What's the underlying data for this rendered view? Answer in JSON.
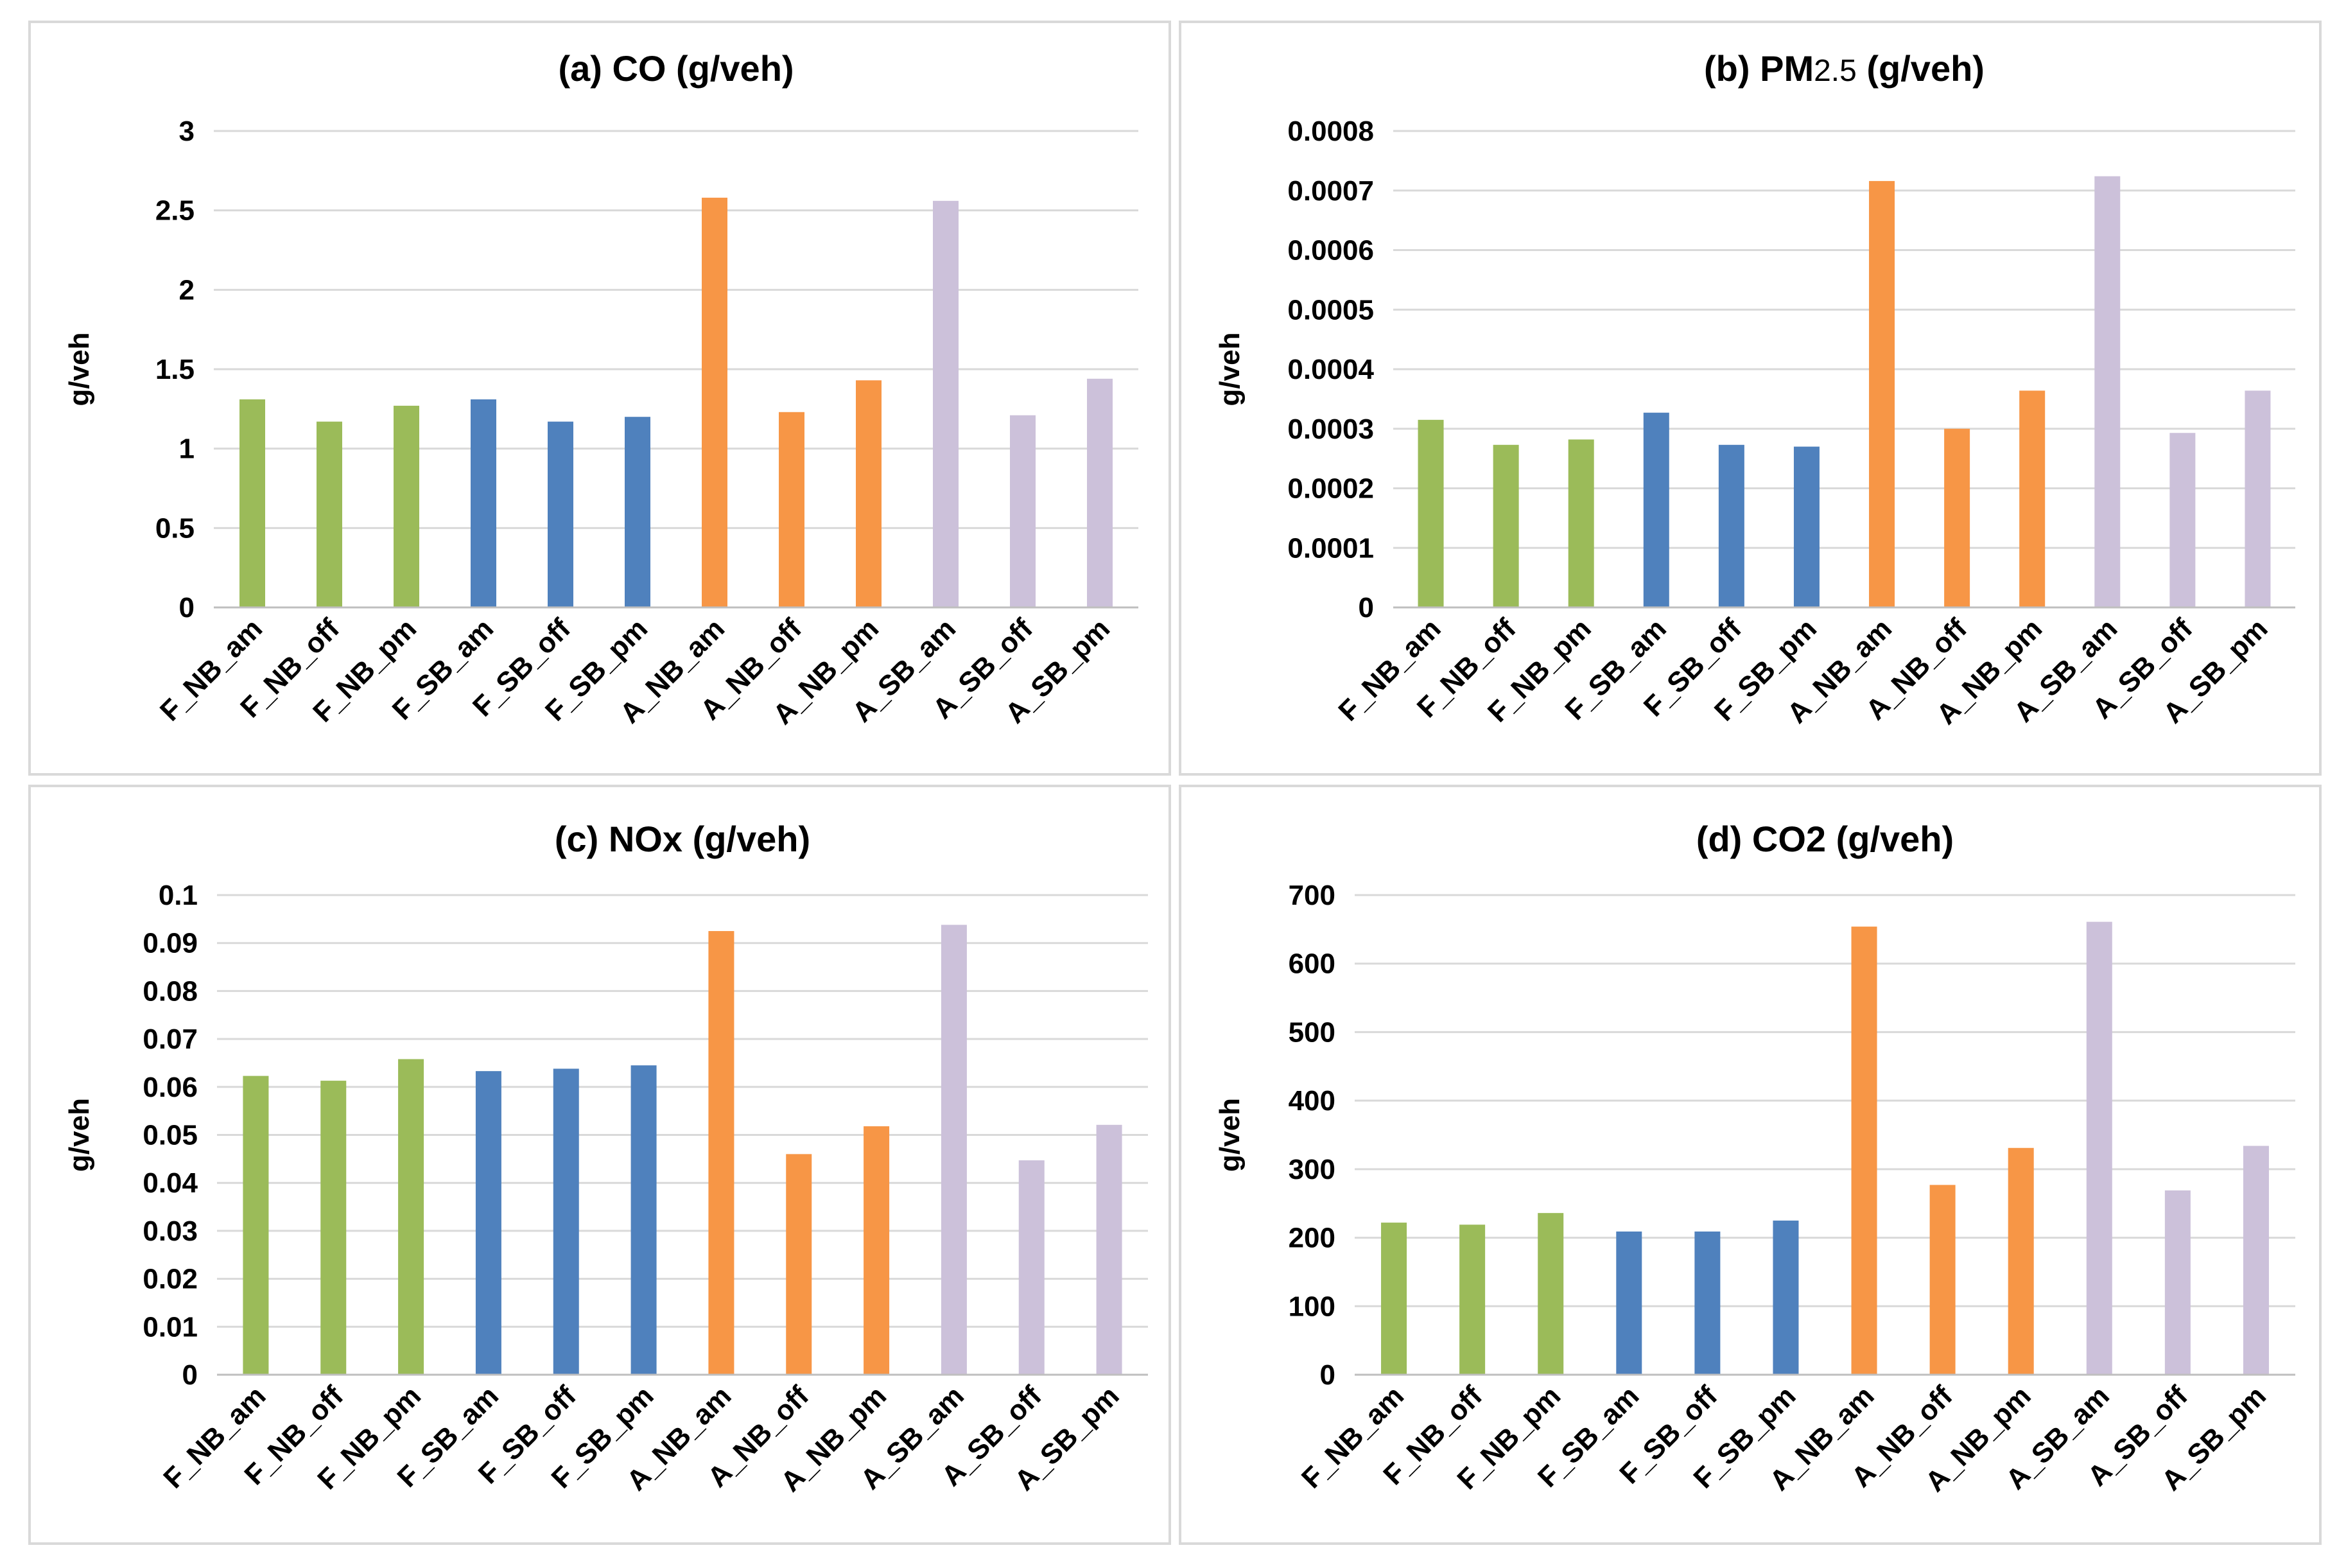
{
  "colors": {
    "F_NB": "#9bbb59",
    "F_SB": "#4f81bd",
    "A_NB": "#f79646",
    "A_SB": "#ccc1da"
  },
  "chart_data": [
    {
      "type": "bar",
      "title": "(a) CO (g/veh)",
      "xlabel": "",
      "ylabel": "g/veh",
      "categories": [
        "F_NB_am",
        "F_NB_off",
        "F_NB_pm",
        "F_SB_am",
        "F_SB_off",
        "F_SB_pm",
        "A_NB_am",
        "A_NB_off",
        "A_NB_pm",
        "A_SB_am",
        "A_SB_off",
        "A_SB_pm"
      ],
      "values": [
        1.31,
        1.17,
        1.27,
        1.31,
        1.17,
        1.2,
        2.58,
        1.23,
        1.43,
        2.56,
        1.21,
        1.44
      ],
      "ylim": [
        0,
        3
      ],
      "ticks": [
        "0",
        "0.5",
        "1",
        "1.5",
        "2",
        "2.5",
        "3"
      ],
      "grid": true
    },
    {
      "type": "bar",
      "title": "(b) PM2.5 (g/veh)",
      "title_main": "(b) PM",
      "title_sub": "2.5",
      "title_rest": " (g/veh)",
      "xlabel": "",
      "ylabel": "g/veh",
      "categories": [
        "F_NB_am",
        "F_NB_off",
        "F_NB_pm",
        "F_SB_am",
        "F_SB_off",
        "F_SB_pm",
        "A_NB_am",
        "A_NB_off",
        "A_NB_pm",
        "A_SB_am",
        "A_SB_off",
        "A_SB_pm"
      ],
      "values": [
        0.000315,
        0.000273,
        0.000282,
        0.000327,
        0.000273,
        0.00027,
        0.000716,
        0.0003,
        0.000364,
        0.000724,
        0.000293,
        0.000364
      ],
      "ylim": [
        0,
        0.0008
      ],
      "ticks": [
        "0",
        "0.0001",
        "0.0002",
        "0.0003",
        "0.0004",
        "0.0005",
        "0.0006",
        "0.0007",
        "0.0008"
      ],
      "grid": true
    },
    {
      "type": "bar",
      "title": "(c) NOx (g/veh)",
      "xlabel": "",
      "ylabel": "g/veh",
      "categories": [
        "F_NB_am",
        "F_NB_off",
        "F_NB_pm",
        "F_SB_am",
        "F_SB_off",
        "F_SB_pm",
        "A_NB_am",
        "A_NB_off",
        "A_NB_pm",
        "A_SB_am",
        "A_SB_off",
        "A_SB_pm"
      ],
      "values": [
        0.0623,
        0.0613,
        0.0658,
        0.0633,
        0.0638,
        0.0645,
        0.0925,
        0.046,
        0.0518,
        0.0938,
        0.0447,
        0.0521
      ],
      "ylim": [
        0,
        0.1
      ],
      "ticks": [
        "0",
        "0.01",
        "0.02",
        "0.03",
        "0.04",
        "0.05",
        "0.06",
        "0.07",
        "0.08",
        "0.09",
        "0.1"
      ],
      "grid": true
    },
    {
      "type": "bar",
      "title": "(d) CO2 (g/veh)",
      "xlabel": "",
      "ylabel": "g/veh",
      "categories": [
        "F_NB_am",
        "F_NB_off",
        "F_NB_pm",
        "F_SB_am",
        "F_SB_off",
        "F_SB_pm",
        "A_NB_am",
        "A_NB_off",
        "A_NB_pm",
        "A_SB_am",
        "A_SB_off",
        "A_SB_pm"
      ],
      "values": [
        222,
        219,
        236,
        209,
        209,
        225,
        654,
        277,
        331,
        661,
        269,
        334
      ],
      "ylim": [
        0,
        700
      ],
      "ticks": [
        "0",
        "100",
        "200",
        "300",
        "400",
        "500",
        "600",
        "700"
      ],
      "grid": true
    }
  ]
}
